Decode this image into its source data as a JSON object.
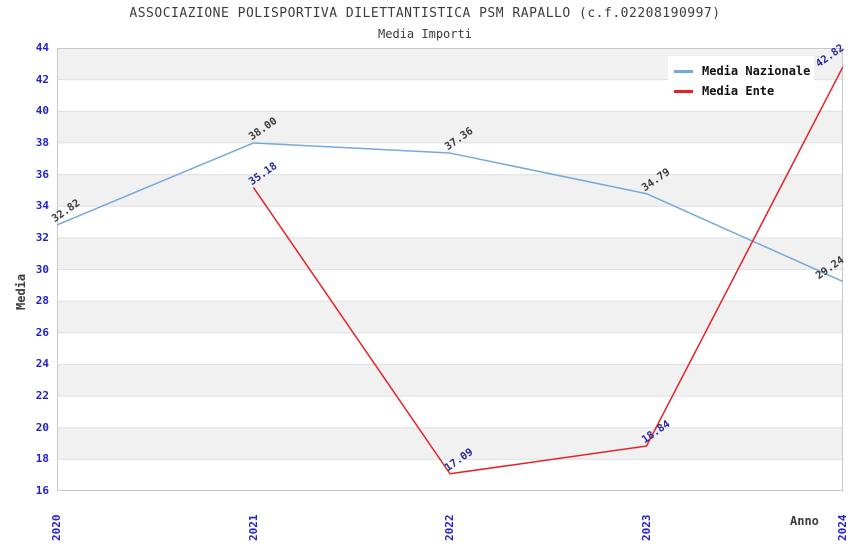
{
  "header": {
    "title": "ASSOCIAZIONE POLISPORTIVA DILETTANTISTICA PSM RAPALLO (c.f.02208190997)",
    "subtitle": "Media Importi"
  },
  "colors": {
    "tick_label_blue": "#2222cc",
    "axis_text_gray": "#3c3c3c",
    "band_gray": "#f1f1f1",
    "grid_line": "#e0e0e0",
    "plot_border": "#c9c9c9",
    "nazionale_line": "#74a9dc",
    "ente_line": "#e62128"
  },
  "chart_data": {
    "type": "line",
    "title": "ASSOCIAZIONE POLISPORTIVA DILETTANTISTICA PSM RAPALLO (c.f.02208190997)",
    "subtitle": "Media Importi",
    "xlabel": "Anno",
    "ylabel": "Media",
    "categories": [
      2020,
      2021,
      2022,
      2023,
      2024
    ],
    "ylim": [
      16,
      44
    ],
    "ytick_step": 2,
    "grid": "horizontal-bands-alternating",
    "legend_position": "top-right-inside",
    "series": [
      {
        "name": "Media Nazionale",
        "color": "#74a9dc",
        "label_color": "#3c3c3c",
        "x": [
          2020,
          2021,
          2022,
          2023,
          2024
        ],
        "values": [
          32.82,
          38.0,
          37.36,
          34.79,
          29.24
        ]
      },
      {
        "name": "Media Ente",
        "color": "#e62128",
        "label_color": "#28289e",
        "x": [
          2021,
          2022,
          2023,
          2024
        ],
        "values": [
          35.18,
          17.09,
          18.84,
          42.82
        ]
      }
    ]
  }
}
